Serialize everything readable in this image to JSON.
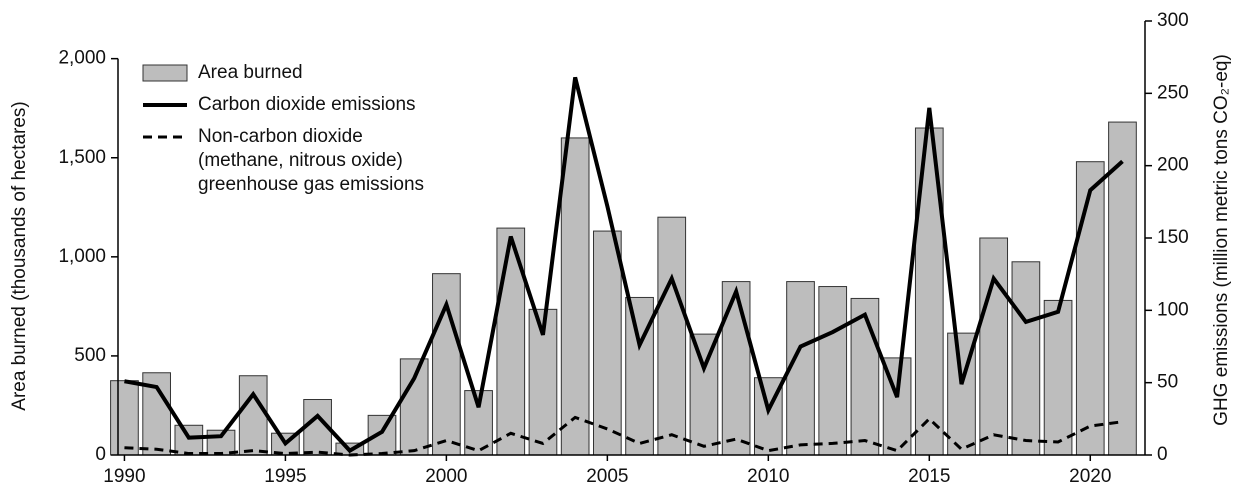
{
  "chart_data": {
    "type": "bar-line",
    "x": [
      1990,
      1991,
      1992,
      1993,
      1994,
      1995,
      1996,
      1997,
      1998,
      1999,
      2000,
      2001,
      2002,
      2003,
      2004,
      2005,
      2006,
      2007,
      2008,
      2009,
      2010,
      2011,
      2012,
      2013,
      2014,
      2015,
      2016,
      2017,
      2018,
      2019,
      2020,
      2021
    ],
    "xlim": [
      1989.8,
      2021.7
    ],
    "xticks": [
      1990,
      1995,
      2000,
      2005,
      2010,
      2015,
      2020
    ],
    "ylabel": "Area burned (thousands of hectares)",
    "y2label": "GHG emissions (million metric tons CO₂-eq)",
    "ylim": [
      0,
      2190
    ],
    "yticks": [
      0,
      500,
      {
        "value": 1000,
        "label": "1,000"
      },
      {
        "value": 1500,
        "label": "1,500"
      },
      {
        "value": 2000,
        "label": "2,000"
      }
    ],
    "y2lim": [
      0,
      300
    ],
    "y2ticks": [
      0,
      50,
      100,
      150,
      200,
      250,
      300
    ],
    "series": [
      {
        "name": "Area burned",
        "kind": "bar",
        "color": "#bdbdbd",
        "values": [
          375,
          415,
          150,
          125,
          400,
          110,
          280,
          60,
          200,
          485,
          915,
          325,
          1145,
          735,
          1600,
          1130,
          795,
          1200,
          610,
          875,
          390,
          875,
          850,
          790,
          490,
          1650,
          615,
          1095,
          975,
          780,
          1480,
          1680
        ]
      },
      {
        "name": "Carbon dioxide emissions",
        "kind": "line",
        "axis": "y2",
        "color": "#000000",
        "values": [
          51,
          47,
          12,
          13,
          42,
          8,
          27,
          3,
          16,
          53,
          104,
          33,
          151,
          83,
          261,
          172,
          76,
          122,
          60,
          113,
          31,
          75,
          85,
          97,
          40,
          240,
          49,
          122,
          92,
          99,
          183,
          203
        ]
      },
      {
        "name": "Non-carbon dioxide\n(methane, nitrous oxide)\ngreenhouse gas emissions",
        "kind": "dashed",
        "axis": "y2",
        "color": "#000000",
        "values": [
          5,
          4,
          1,
          1,
          3,
          1,
          2,
          0,
          1,
          3,
          10,
          3,
          15,
          8,
          26,
          18,
          8,
          14,
          6,
          11,
          3,
          7,
          8,
          10,
          3,
          25,
          4,
          14,
          10,
          9,
          20,
          23
        ]
      }
    ]
  }
}
